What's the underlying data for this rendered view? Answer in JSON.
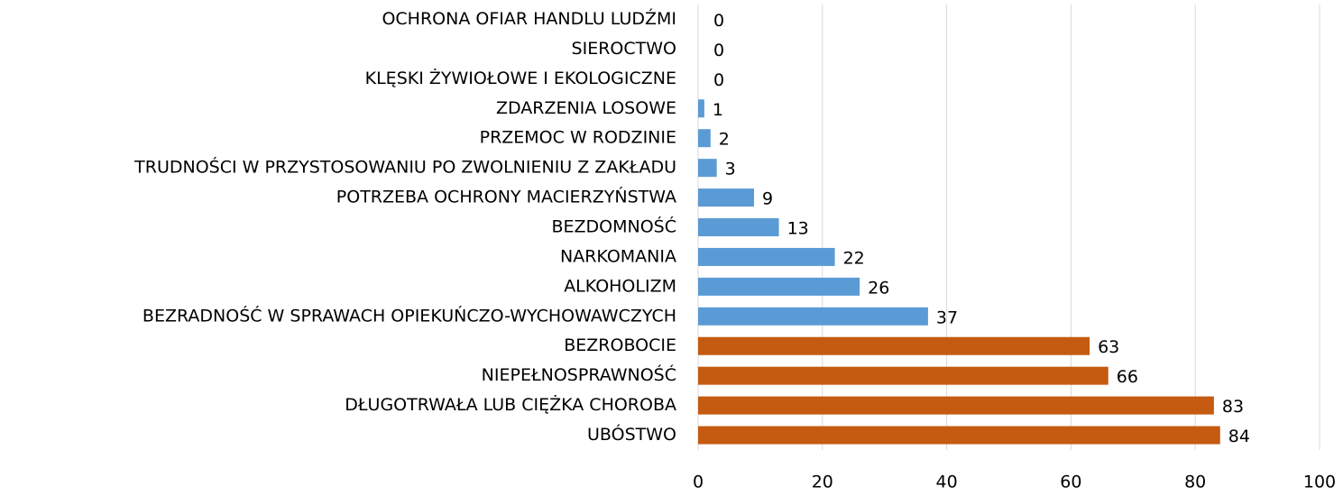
{
  "chart_data": {
    "type": "barh",
    "categories": [
      "OCHRONA OFIAR HANDLU LUDŹMI",
      "SIEROCTWO",
      "KLĘSKI ŻYWIOŁOWE I EKOLOGICZNE",
      "ZDARZENIA LOSOWE",
      "PRZEMOC W RODZINIE",
      "TRUDNOŚCI W PRZYSTOSOWANIU PO ZWOLNIENIU Z ZAKŁADU",
      "POTRZEBA OCHRONY MACIERZYŃSTWA",
      "BEZDOMNOŚĆ",
      "NARKOMANIA",
      "ALKOHOLIZM",
      "BEZRADNOŚĆ W SPRAWACH OPIEKUŃCZO-WYCHOWAWCZYCH",
      "BEZROBOCIE",
      "NIEPEŁNOSPRAWNOŚĆ",
      "DŁUGOTRWAŁA LUB CIĘŻKA CHOROBA",
      "UBÓSTWO"
    ],
    "values": [
      0,
      0,
      0,
      1,
      2,
      3,
      9,
      13,
      22,
      26,
      37,
      63,
      66,
      83,
      84
    ],
    "colors": [
      "#5b9bd5",
      "#5b9bd5",
      "#5b9bd5",
      "#5b9bd5",
      "#5b9bd5",
      "#5b9bd5",
      "#5b9bd5",
      "#5b9bd5",
      "#5b9bd5",
      "#5b9bd5",
      "#5b9bd5",
      "#c55a11",
      "#c55a11",
      "#c55a11",
      "#c55a11"
    ],
    "xlim": [
      0,
      100
    ],
    "xticks": [
      0,
      20,
      40,
      60,
      80,
      100
    ],
    "grid": true
  }
}
